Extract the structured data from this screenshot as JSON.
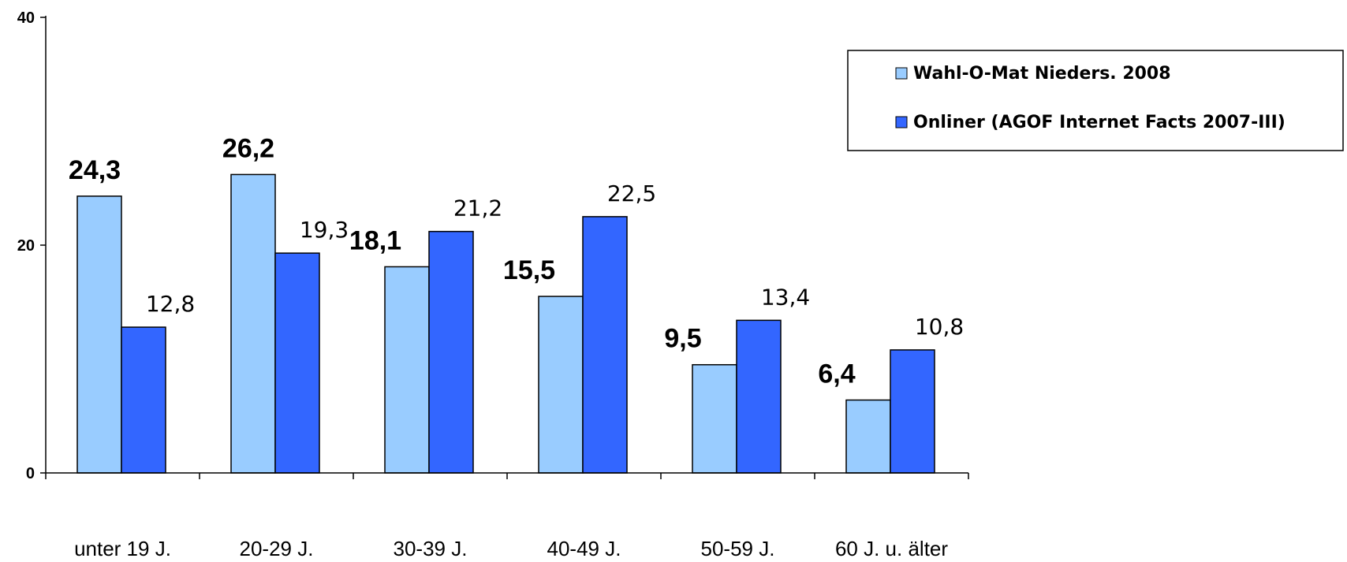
{
  "chart_data": {
    "type": "bar",
    "categories": [
      "unter 19 J.",
      "20-29 J.",
      "30-39 J.",
      "40-49 J.",
      "50-59 J.",
      "60 J. u. älter"
    ],
    "series": [
      {
        "name": "Wahl-O-Mat Nieders. 2008",
        "values": [
          24.3,
          26.2,
          18.1,
          15.5,
          9.5,
          6.4
        ],
        "labels": [
          "24,3",
          "26,2",
          "18,1",
          "15,5",
          "9,5",
          "6,4"
        ],
        "color": "#99ccff"
      },
      {
        "name": "Onliner (AGOF Internet Facts 2007-III)",
        "values": [
          12.8,
          19.3,
          21.2,
          22.5,
          13.4,
          10.8
        ],
        "labels": [
          "12,8",
          "19,3",
          "21,2",
          "22,5",
          "13,4",
          "10,8"
        ],
        "color": "#3366ff"
      }
    ],
    "ylim": [
      0,
      40
    ],
    "yticks": [
      0,
      20,
      40
    ],
    "ytick_labels": [
      "0",
      "20",
      "40"
    ],
    "title": "",
    "xlabel": "",
    "ylabel": "",
    "grid": false,
    "legend_position": "top-right"
  }
}
